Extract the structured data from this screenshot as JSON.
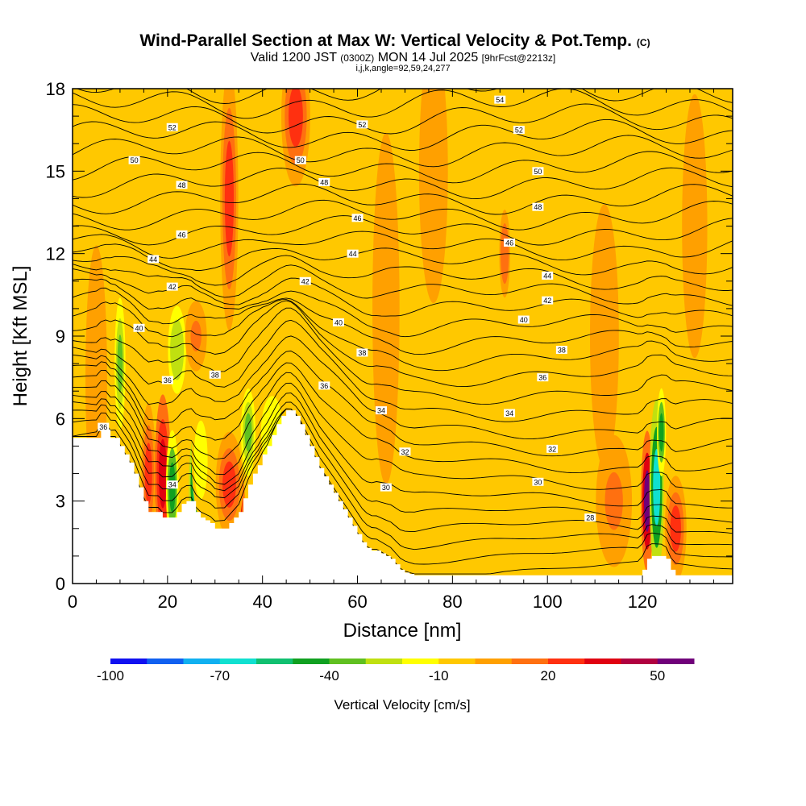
{
  "chart_data": {
    "type": "heatmap",
    "title": "Wind-Parallel Section at Max W: Vertical Velocity & Pot.Temp.",
    "title_mark": "(C)",
    "subtitle_parts": [
      "Valid 1200 JST ",
      "(0300Z)",
      " MON 14 Jul 2025 ",
      "[9hrFcst@2213z]"
    ],
    "subtitle2": "i,j,k,angle=92,59,24,277",
    "xlabel": "Distance [nm]",
    "ylabel": "Height [Kft MSL]",
    "xlim": [
      0,
      139
    ],
    "ylim": [
      0,
      18
    ],
    "x_ticks": [
      0,
      20,
      40,
      60,
      80,
      100,
      120
    ],
    "x_tick_labels": [
      "0",
      "20",
      "40",
      "60",
      "80",
      "100",
      "120"
    ],
    "y_ticks": [
      0,
      3,
      6,
      9,
      12,
      15,
      18
    ],
    "y_tick_labels": [
      "0",
      "3",
      "6",
      "9",
      "12",
      "15",
      "18"
    ],
    "colorbar": {
      "label": "Vertical Velocity [cm/s]",
      "min": -100,
      "max": 60,
      "tick_values": [
        -100,
        -70,
        -40,
        -10,
        20,
        50
      ],
      "tick_labels": [
        "-100",
        "-70",
        "-40",
        "-10",
        "20",
        "50"
      ],
      "colors": [
        "#1010f0",
        "#1060f0",
        "#10b0f0",
        "#10e0d0",
        "#10c070",
        "#10a020",
        "#60c020",
        "#c0e010",
        "#ffff00",
        "#ffc800",
        "#ffa000",
        "#ff7010",
        "#ff3010",
        "#e00010",
        "#b00040",
        "#70007a"
      ]
    },
    "terrain": {
      "x": [
        0,
        5,
        6,
        7,
        8,
        9,
        10,
        11,
        12,
        13,
        14,
        15,
        16,
        17,
        18,
        19,
        20,
        21,
        22,
        23,
        24,
        25,
        26,
        27,
        28,
        29,
        30,
        31,
        32,
        33,
        34,
        35,
        36,
        37,
        38,
        39,
        40,
        41,
        42,
        43,
        44,
        45,
        46,
        47,
        48,
        49,
        50,
        51,
        52,
        53,
        54,
        55,
        56,
        57,
        58,
        59,
        60,
        61,
        62,
        63,
        64,
        65,
        66,
        67,
        68,
        69,
        70,
        72,
        75,
        80,
        85,
        90,
        95,
        100,
        105,
        110,
        115,
        119,
        120,
        121,
        122,
        123,
        124,
        125,
        126,
        127,
        128,
        130,
        135,
        139
      ],
      "top_kft": [
        5.3,
        5.3,
        5.6,
        5.6,
        5.3,
        5.3,
        5.0,
        4.7,
        4.4,
        4.0,
        3.5,
        3.0,
        2.6,
        2.6,
        2.6,
        2.4,
        2.4,
        2.4,
        2.6,
        2.9,
        3.0,
        3.0,
        2.6,
        2.4,
        2.3,
        2.2,
        2.0,
        2.0,
        2.0,
        2.2,
        2.4,
        2.6,
        3.1,
        3.6,
        4.0,
        4.3,
        4.7,
        5.0,
        5.4,
        5.8,
        6.1,
        6.3,
        6.3,
        6.1,
        5.8,
        5.4,
        5.0,
        4.6,
        4.2,
        3.9,
        3.6,
        3.3,
        3.0,
        2.7,
        2.4,
        2.1,
        1.8,
        1.5,
        1.3,
        1.2,
        1.2,
        1.1,
        1.0,
        0.9,
        0.7,
        0.5,
        0.4,
        0.3,
        0.3,
        0.3,
        0.3,
        0.3,
        0.3,
        0.3,
        0.3,
        0.3,
        0.3,
        0.3,
        0.5,
        0.9,
        1.0,
        1.0,
        1.0,
        0.9,
        0.5,
        0.3,
        0.3,
        0.3,
        0.3,
        0.3
      ]
    },
    "theta_contours": {
      "levels": [
        28,
        30,
        32,
        34,
        36,
        38,
        40,
        42,
        44,
        46,
        48,
        50,
        52,
        54
      ],
      "labels": [
        {
          "text": "28",
          "x": 109,
          "y": 2.4
        },
        {
          "text": "30",
          "x": 66,
          "y": 3.5
        },
        {
          "text": "30",
          "x": 98,
          "y": 3.7
        },
        {
          "text": "32",
          "x": 70,
          "y": 4.8
        },
        {
          "text": "32",
          "x": 101,
          "y": 4.9
        },
        {
          "text": "34",
          "x": 65,
          "y": 6.3
        },
        {
          "text": "34",
          "x": 92,
          "y": 6.2
        },
        {
          "text": "34",
          "x": 21,
          "y": 3.6
        },
        {
          "text": "36",
          "x": 53,
          "y": 7.2
        },
        {
          "text": "36",
          "x": 99,
          "y": 7.5
        },
        {
          "text": "36",
          "x": 20,
          "y": 7.4
        },
        {
          "text": "36",
          "x": 6.5,
          "y": 5.7
        },
        {
          "text": "38",
          "x": 61,
          "y": 8.4
        },
        {
          "text": "38",
          "x": 103,
          "y": 8.5
        },
        {
          "text": "38",
          "x": 30,
          "y": 7.6
        },
        {
          "text": "40",
          "x": 14,
          "y": 9.3
        },
        {
          "text": "40",
          "x": 56,
          "y": 9.5
        },
        {
          "text": "40",
          "x": 95,
          "y": 9.6
        },
        {
          "text": "42",
          "x": 21,
          "y": 10.8
        },
        {
          "text": "42",
          "x": 49,
          "y": 11.0
        },
        {
          "text": "42",
          "x": 100,
          "y": 10.3
        },
        {
          "text": "44",
          "x": 17,
          "y": 11.8
        },
        {
          "text": "44",
          "x": 59,
          "y": 12.0
        },
        {
          "text": "44",
          "x": 100,
          "y": 11.2
        },
        {
          "text": "46",
          "x": 23,
          "y": 12.7
        },
        {
          "text": "46",
          "x": 60,
          "y": 13.3
        },
        {
          "text": "46",
          "x": 92,
          "y": 12.4
        },
        {
          "text": "48",
          "x": 23,
          "y": 14.5
        },
        {
          "text": "48",
          "x": 53,
          "y": 14.6
        },
        {
          "text": "48",
          "x": 98,
          "y": 13.7
        },
        {
          "text": "50",
          "x": 13,
          "y": 15.4
        },
        {
          "text": "50",
          "x": 48,
          "y": 15.4
        },
        {
          "text": "50",
          "x": 98,
          "y": 15.0
        },
        {
          "text": "52",
          "x": 21,
          "y": 16.6
        },
        {
          "text": "52",
          "x": 61,
          "y": 16.7
        },
        {
          "text": "52",
          "x": 94,
          "y": 16.5
        },
        {
          "text": "54",
          "x": 90,
          "y": 17.6
        }
      ]
    },
    "w_features": [
      {
        "x": 5,
        "y": 7.5,
        "w": 8,
        "v": 20,
        "sx": 1.2,
        "sy": 3
      },
      {
        "x": 10,
        "y": 8,
        "w": -40,
        "v": -50,
        "sx": 0.6,
        "sy": 1.5
      },
      {
        "x": 16,
        "y": 4,
        "w": 25,
        "v": 25,
        "sx": 0.8,
        "sy": 1.6
      },
      {
        "x": 19,
        "y": 4,
        "w": 30,
        "v": 30,
        "sx": 0.9,
        "sy": 1.8
      },
      {
        "x": 21,
        "y": 3.5,
        "w": -45,
        "v": -40,
        "sx": 0.7,
        "sy": 1.3
      },
      {
        "x": 22,
        "y": 8.5,
        "w": -30,
        "v": -30,
        "sx": 1.0,
        "sy": 1.0
      },
      {
        "x": 26,
        "y": 3.6,
        "w": -60,
        "v": -60,
        "sx": 0.8,
        "sy": 1.2
      },
      {
        "x": 27,
        "y": 4.5,
        "w": -20,
        "v": -20,
        "sx": 1.0,
        "sy": 1.3
      },
      {
        "x": 26,
        "y": 9,
        "w": 12,
        "v": 15,
        "sx": 1.2,
        "sy": 0.8
      },
      {
        "x": 34,
        "y": 3,
        "w": 50,
        "v": 55,
        "sx": 1.2,
        "sy": 0.9
      },
      {
        "x": 33,
        "y": 3.6,
        "w": 25,
        "v": 25,
        "sx": 1.5,
        "sy": 1.2
      },
      {
        "x": 37,
        "y": 5.5,
        "w": -40,
        "v": -40,
        "sx": 0.8,
        "sy": 1.0
      },
      {
        "x": 42,
        "y": 5.5,
        "w": -15,
        "v": -15,
        "sx": 1.6,
        "sy": 1.2
      },
      {
        "x": 33,
        "y": 14,
        "w": 20,
        "v": 20,
        "sx": 1.0,
        "sy": 3
      },
      {
        "x": 47,
        "y": 17,
        "w": 22,
        "v": 25,
        "sx": 1.6,
        "sy": 1.6
      },
      {
        "x": 54,
        "y": 14,
        "w": -10,
        "v": -10,
        "sx": 1.5,
        "sy": 3
      },
      {
        "x": 66,
        "y": 10,
        "w": 8,
        "v": 10,
        "sx": 1.5,
        "sy": 4
      },
      {
        "x": 76,
        "y": 15,
        "w": 8,
        "v": 10,
        "sx": 1.6,
        "sy": 3
      },
      {
        "x": 78,
        "y": 6,
        "w": -10,
        "v": -10,
        "sx": 2,
        "sy": 2
      },
      {
        "x": 91,
        "y": 12,
        "w": 18,
        "v": 20,
        "sx": 0.6,
        "sy": 1
      },
      {
        "x": 102,
        "y": 6,
        "w": -10,
        "v": -10,
        "sx": 2,
        "sy": 2
      },
      {
        "x": 112,
        "y": 9,
        "w": 8,
        "v": 10,
        "sx": 1.6,
        "sy": 3
      },
      {
        "x": 114,
        "y": 3,
        "w": 10,
        "v": 10,
        "sx": 2,
        "sy": 1.5
      },
      {
        "x": 121,
        "y": 3,
        "w": 50,
        "v": 50,
        "sx": 0.7,
        "sy": 1.6
      },
      {
        "x": 123,
        "y": 3.5,
        "w": -70,
        "v": -75,
        "sx": 0.8,
        "sy": 2.0
      },
      {
        "x": 124,
        "y": 5.5,
        "w": -50,
        "v": -50,
        "sx": 0.5,
        "sy": 1.0
      },
      {
        "x": 127,
        "y": 2,
        "w": 25,
        "v": 25,
        "sx": 1.2,
        "sy": 1.2
      },
      {
        "x": 131,
        "y": 13,
        "w": 8,
        "v": 10,
        "sx": 1.4,
        "sy": 3
      }
    ]
  }
}
